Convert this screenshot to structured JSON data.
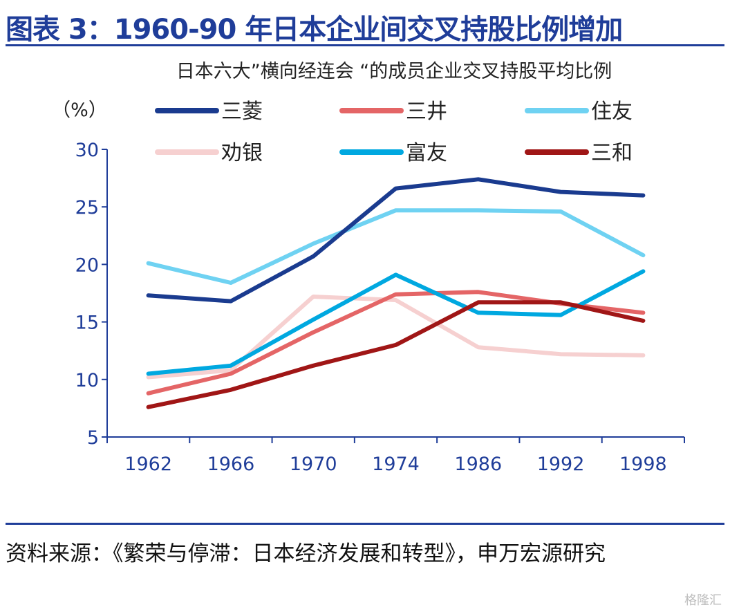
{
  "header": {
    "title": "图表 3：1960-90 年日本企业间交叉持股比例增加"
  },
  "footer": {
    "source": "资料来源：《繁荣与停滞：日本经济发展和转型》，申万宏源研究",
    "watermark": "格隆汇"
  },
  "chart_data": {
    "type": "line",
    "title": "日本六大”横向经连会 “的成员企业交叉持股平均比例",
    "ylabel": "（%）",
    "xlabel": "",
    "categories": [
      "1962",
      "1966",
      "1970",
      "1974",
      "1986",
      "1992",
      "1998"
    ],
    "ylim": [
      5,
      30
    ],
    "yticks": [
      5,
      10,
      15,
      20,
      25,
      30
    ],
    "grid": false,
    "legend_position": "top",
    "series": [
      {
        "name": "三菱",
        "color": "#1a3b8f",
        "values": [
          17.3,
          16.8,
          20.7,
          26.6,
          27.4,
          26.3,
          26.0
        ]
      },
      {
        "name": "三井",
        "color": "#e46566",
        "values": [
          8.8,
          10.5,
          14.1,
          17.4,
          17.6,
          16.6,
          15.8
        ]
      },
      {
        "name": "住友",
        "color": "#6fd2f2",
        "values": [
          20.1,
          18.4,
          21.8,
          24.7,
          24.7,
          24.6,
          20.8
        ]
      },
      {
        "name": "劝银",
        "color": "#f6d0d0",
        "values": [
          10.2,
          10.8,
          17.2,
          16.9,
          12.8,
          12.2,
          12.1
        ]
      },
      {
        "name": "富友",
        "color": "#00a8e0",
        "values": [
          10.5,
          11.2,
          15.2,
          19.1,
          15.8,
          15.6,
          19.4
        ]
      },
      {
        "name": "三和",
        "color": "#a01616",
        "values": [
          7.6,
          9.1,
          11.2,
          13.0,
          16.7,
          16.7,
          15.1
        ]
      }
    ]
  }
}
